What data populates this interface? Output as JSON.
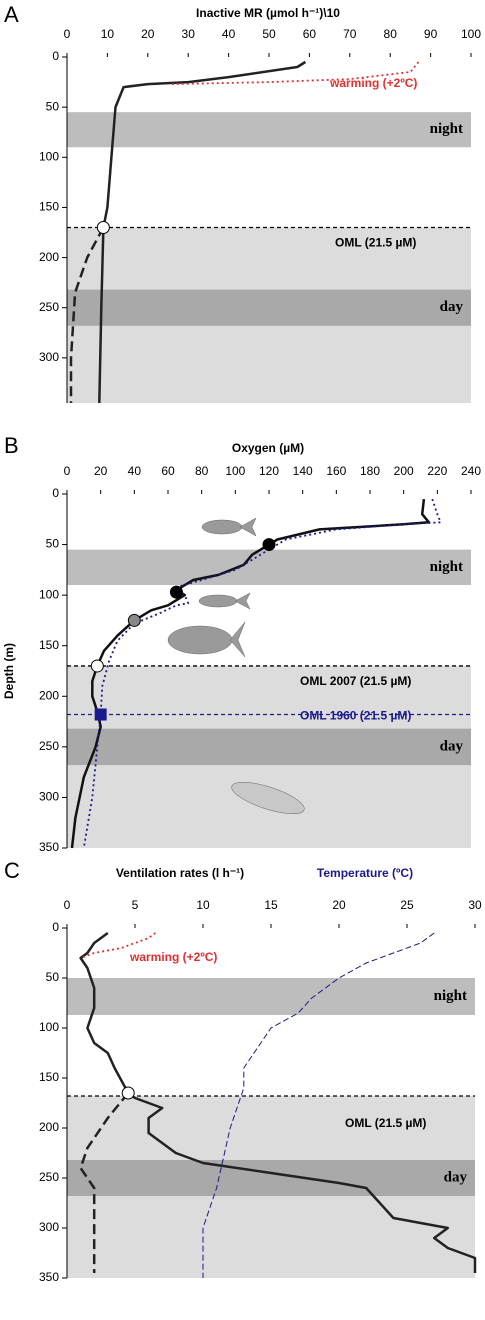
{
  "chart_data": [
    {
      "type": "line",
      "panel": "A",
      "x_labels": [
        {
          "text": "Inactive MR (µmol h⁻¹)\\10",
          "color": "#000000"
        }
      ],
      "xlim": [
        0,
        100
      ],
      "xticks": [
        0,
        10,
        20,
        30,
        40,
        50,
        60,
        70,
        80,
        90,
        100
      ],
      "ylim": [
        0,
        345
      ],
      "yticks": [
        0,
        50,
        100,
        150,
        200,
        250,
        300
      ],
      "bands": [
        {
          "label": "night",
          "range": [
            55,
            90
          ]
        },
        {
          "label": "day",
          "range": [
            232,
            268
          ]
        }
      ],
      "oml": [
        {
          "label": "OML (21.5 µM)",
          "depth": 170,
          "color": "#000000"
        }
      ],
      "series": [
        {
          "color": "#222222",
          "dash": "solid",
          "x": [
            59,
            57,
            40,
            30,
            20,
            14,
            12,
            11,
            10,
            9,
            8.5,
            8
          ],
          "y": [
            5,
            10,
            20,
            25,
            27,
            30,
            50,
            100,
            150,
            170,
            250,
            345
          ]
        },
        {
          "color": "#222222",
          "dash": "dashed",
          "x": [
            9,
            5,
            2,
            1,
            1
          ],
          "y": [
            170,
            200,
            235,
            300,
            345
          ]
        },
        {
          "color": "#e03030",
          "dash": "dotted",
          "x": [
            87,
            85,
            70,
            50,
            26
          ],
          "y": [
            5,
            15,
            22,
            25,
            27
          ]
        }
      ],
      "markers": [
        {
          "x": 9,
          "y": 170,
          "color": "#ffffff",
          "shape": "circle"
        }
      ],
      "annotations": [
        {
          "text": "warming (+2ºC)",
          "color": "#e03030"
        }
      ]
    },
    {
      "type": "line",
      "panel": "B",
      "x_labels": [
        {
          "text": "Oxygen (µM)",
          "color": "#000000"
        }
      ],
      "y_label": "Depth (m)",
      "xlim": [
        0,
        240
      ],
      "xticks": [
        0,
        20,
        40,
        60,
        80,
        100,
        120,
        140,
        160,
        180,
        200,
        220,
        240
      ],
      "ylim": [
        0,
        350
      ],
      "yticks": [
        0,
        50,
        100,
        150,
        200,
        250,
        300,
        350
      ],
      "bands": [
        {
          "label": "night",
          "range": [
            55,
            90
          ]
        },
        {
          "label": "day",
          "range": [
            232,
            268
          ]
        }
      ],
      "oml": [
        {
          "label": "OML 2007 (21.5 µM)",
          "depth": 170,
          "color": "#000000"
        },
        {
          "label": "OML 1960 (21.5 µM)",
          "depth": 218,
          "color": "#1a1a8c"
        }
      ],
      "series": [
        {
          "color": "#111111",
          "dash": "solid",
          "x": [
            212,
            211,
            215,
            200,
            150,
            125,
            120,
            110,
            105,
            90,
            75,
            65,
            70,
            65,
            60,
            50,
            40,
            30,
            22,
            18,
            15,
            15,
            18,
            20,
            17,
            10,
            5,
            3
          ],
          "y": [
            5,
            20,
            28,
            30,
            35,
            45,
            50,
            60,
            70,
            80,
            85,
            95,
            100,
            105,
            110,
            115,
            125,
            140,
            155,
            170,
            185,
            200,
            215,
            230,
            250,
            280,
            320,
            350
          ]
        },
        {
          "color": "#1a1a8c",
          "dash": "dotted",
          "x": [
            217,
            220,
            222,
            200,
            160,
            130,
            120,
            110,
            100,
            80,
            65,
            70,
            72,
            65,
            55,
            40,
            30,
            25,
            21,
            20,
            18,
            15,
            10
          ],
          "y": [
            5,
            20,
            28,
            30,
            35,
            45,
            55,
            65,
            75,
            85,
            92,
            100,
            108,
            110,
            118,
            128,
            145,
            165,
            190,
            218,
            250,
            300,
            350
          ]
        }
      ],
      "markers": [
        {
          "x": 120,
          "y": 50,
          "color": "#000000",
          "shape": "circle"
        },
        {
          "x": 65,
          "y": 97,
          "color": "#000000",
          "shape": "circle"
        },
        {
          "x": 40,
          "y": 125,
          "color": "#888888",
          "shape": "circle"
        },
        {
          "x": 18,
          "y": 170,
          "color": "#ffffff",
          "shape": "circle"
        },
        {
          "x": 20,
          "y": 218,
          "color": "#1a1a8c",
          "shape": "square"
        }
      ],
      "annotations": []
    },
    {
      "type": "line",
      "panel": "C",
      "x_labels": [
        {
          "text": "Ventilation rates (l h⁻¹)",
          "color": "#000000"
        },
        {
          "text": "Temperature (ºC)",
          "color": "#1a1a8c"
        }
      ],
      "xlim": [
        0,
        30
      ],
      "xticks": [
        0,
        5,
        10,
        15,
        20,
        25,
        30
      ],
      "ylim": [
        0,
        350
      ],
      "yticks": [
        0,
        50,
        100,
        150,
        200,
        250,
        300,
        350
      ],
      "bands": [
        {
          "label": "night",
          "range": [
            50,
            87
          ]
        },
        {
          "label": "day",
          "range": [
            232,
            268
          ]
        }
      ],
      "oml": [
        {
          "label": "OML (21.5 µM)",
          "depth": 168,
          "color": "#000000"
        }
      ],
      "series": [
        {
          "color": "#222222",
          "dash": "solid",
          "x": [
            3,
            2.5,
            2,
            1.5,
            1,
            1.5,
            2,
            2,
            1.5,
            2,
            3,
            3.5,
            4.5,
            5,
            6,
            7,
            6,
            6,
            7,
            8,
            10,
            15,
            20,
            22,
            23,
            24,
            28,
            27,
            28,
            30,
            30
          ],
          "y": [
            5,
            10,
            15,
            25,
            30,
            40,
            60,
            80,
            100,
            115,
            125,
            140,
            165,
            170,
            175,
            180,
            190,
            205,
            215,
            225,
            235,
            245,
            255,
            260,
            275,
            290,
            300,
            310,
            320,
            330,
            345
          ]
        },
        {
          "color": "#222222",
          "dash": "dashed",
          "x": [
            4.5,
            3,
            1.5,
            1,
            2,
            2,
            2
          ],
          "y": [
            165,
            190,
            220,
            240,
            260,
            300,
            345
          ]
        },
        {
          "color": "#e03030",
          "dash": "dotted",
          "x": [
            6.5,
            6,
            4,
            2,
            1
          ],
          "y": [
            5,
            10,
            20,
            25,
            30
          ]
        },
        {
          "color": "#1a1a8c",
          "dash": "dashed-thin",
          "x": [
            27,
            26,
            24,
            22,
            20,
            18,
            17,
            15,
            14,
            13,
            13,
            12.5,
            12,
            11.5,
            11,
            10.5,
            10,
            10,
            10
          ],
          "y": [
            5,
            15,
            25,
            35,
            50,
            70,
            85,
            100,
            120,
            140,
            160,
            180,
            200,
            230,
            260,
            280,
            300,
            330,
            350
          ]
        }
      ],
      "markers": [
        {
          "x": 4.5,
          "y": 165,
          "color": "#ffffff",
          "shape": "circle"
        }
      ],
      "annotations": [
        {
          "text": "warming (+2ºC)",
          "color": "#e03030"
        }
      ]
    }
  ]
}
